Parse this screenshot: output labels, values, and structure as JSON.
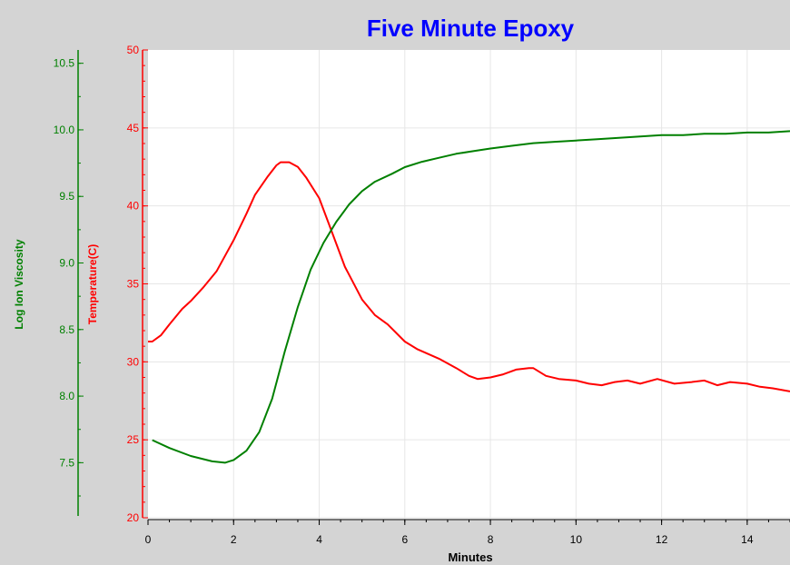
{
  "chart_data": {
    "type": "line",
    "title": "Five Minute Epoxy",
    "xlabel": "Minutes",
    "xlim": [
      0,
      15
    ],
    "x_ticks": [
      "0",
      "2",
      "4",
      "6",
      "8",
      "10",
      "12",
      "14"
    ],
    "grid": true,
    "legend": "none",
    "axes": {
      "temperature": {
        "label": "Temperature(C)",
        "ylim": [
          20,
          50
        ],
        "ticks": [
          "20",
          "25",
          "30",
          "35",
          "40",
          "45",
          "50"
        ],
        "color": "#ff0000"
      },
      "viscosity": {
        "label": "Log Ion Viscosity",
        "ylim": [
          7.1,
          10.6
        ],
        "ticks": [
          "7.5",
          "8.0",
          "8.5",
          "9.0",
          "9.5",
          "10.0",
          "10.5"
        ],
        "color": "#008000"
      }
    },
    "series": [
      {
        "axis": "temperature",
        "color": "#ff0000",
        "x": [
          0.0,
          0.1,
          0.3,
          0.5,
          0.8,
          1.0,
          1.3,
          1.6,
          2.0,
          2.3,
          2.5,
          2.8,
          3.0,
          3.1,
          3.3,
          3.5,
          3.7,
          4.0,
          4.3,
          4.6,
          5.0,
          5.3,
          5.6,
          6.0,
          6.3,
          6.8,
          7.2,
          7.5,
          7.7,
          8.0,
          8.3,
          8.6,
          8.9,
          9.0,
          9.3,
          9.6,
          10.0,
          10.3,
          10.6,
          10.9,
          11.2,
          11.5,
          11.9,
          12.3,
          12.7,
          13.0,
          13.3,
          13.6,
          14.0,
          14.3,
          14.6,
          15.0
        ],
        "values": [
          31.3,
          31.3,
          31.7,
          32.4,
          33.4,
          33.9,
          34.8,
          35.8,
          37.8,
          39.5,
          40.7,
          41.9,
          42.6,
          42.8,
          42.8,
          42.5,
          41.8,
          40.5,
          38.3,
          36.1,
          34.0,
          33.0,
          32.4,
          31.3,
          30.8,
          30.2,
          29.6,
          29.1,
          28.9,
          29.0,
          29.2,
          29.5,
          29.6,
          29.6,
          29.1,
          28.9,
          28.8,
          28.6,
          28.5,
          28.7,
          28.8,
          28.6,
          28.9,
          28.6,
          28.7,
          28.8,
          28.5,
          28.7,
          28.6,
          28.4,
          28.3,
          28.1
        ]
      },
      {
        "axis": "viscosity",
        "color": "#008000",
        "x": [
          0.1,
          0.5,
          1.0,
          1.5,
          1.8,
          2.0,
          2.3,
          2.6,
          2.9,
          3.2,
          3.5,
          3.8,
          4.1,
          4.4,
          4.7,
          5.0,
          5.3,
          5.7,
          6.0,
          6.4,
          6.8,
          7.2,
          7.6,
          8.0,
          8.5,
          9.0,
          9.5,
          10.0,
          10.5,
          11.0,
          11.5,
          12.0,
          12.5,
          13.0,
          13.5,
          14.0,
          14.5,
          15.0
        ],
        "values": [
          7.67,
          7.61,
          7.55,
          7.51,
          7.5,
          7.52,
          7.59,
          7.73,
          7.98,
          8.34,
          8.67,
          8.95,
          9.15,
          9.31,
          9.44,
          9.54,
          9.61,
          9.67,
          9.72,
          9.76,
          9.79,
          9.82,
          9.84,
          9.86,
          9.88,
          9.9,
          9.91,
          9.92,
          9.93,
          9.94,
          9.95,
          9.96,
          9.96,
          9.97,
          9.97,
          9.98,
          9.98,
          9.99
        ]
      }
    ]
  }
}
